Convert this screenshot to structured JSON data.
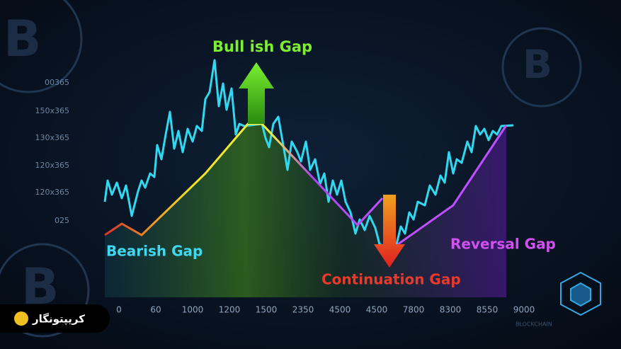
{
  "labels": {
    "bullish": "Bull ish Gap",
    "bearish": "Bearish Gap",
    "continuation": "Continuation Gap",
    "reversal": "Reversal Gap"
  },
  "y_axis": [
    "00365",
    "150x365",
    "130x365",
    "120x365",
    "120x365",
    "025"
  ],
  "x_axis": [
    "0",
    "60",
    "1000",
    "1200",
    "1500",
    "2350",
    "4500",
    "4500",
    "7800",
    "8300",
    "8550",
    "9000"
  ],
  "watermark": "BLOCKCHAIN",
  "logo": "کریپتونگار"
}
